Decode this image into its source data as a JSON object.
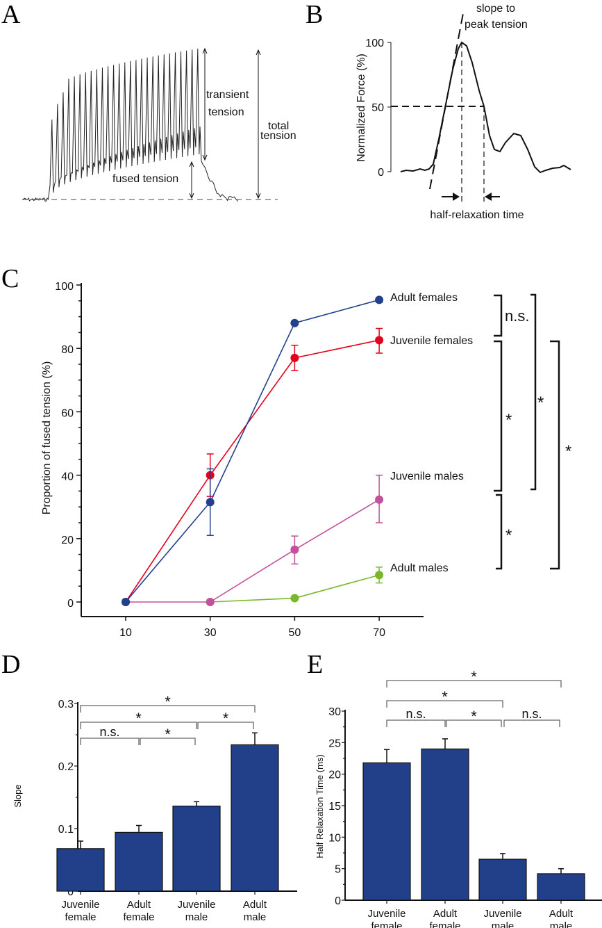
{
  "panel_letters": [
    "A",
    "B",
    "C",
    "D",
    "E"
  ],
  "panel_a": {
    "labels": {
      "transient": [
        "transient",
        "tension"
      ],
      "total": [
        "total",
        "tension"
      ],
      "fused": "fused tension"
    }
  },
  "panel_b": {
    "ylabel": "Normalized Force (%)",
    "yticks": [
      "0",
      "50",
      "100"
    ],
    "slope_label": [
      "slope to",
      "peak tension"
    ],
    "half_label": "half-relaxation time"
  },
  "chart_data": [
    {
      "type": "line",
      "panel": "C",
      "ylabel": "Proportion of fused tension (%)",
      "xlabel": "",
      "x": [
        10,
        30,
        50,
        70
      ],
      "xticks": [
        "10",
        "30",
        "50",
        "70"
      ],
      "yticks": [
        "0",
        "20",
        "40",
        "60",
        "80",
        "100"
      ],
      "ylim": [
        0,
        100
      ],
      "series": [
        {
          "name": "Adult females",
          "color": "#22408c",
          "values": [
            0,
            31.5,
            88,
            95.3
          ],
          "err_low": [
            0,
            21,
            88,
            94.5
          ],
          "err_high": [
            0,
            42,
            88,
            96
          ]
        },
        {
          "name": "Juvenile females",
          "color": "#e4001c",
          "values": [
            0,
            40,
            77,
            82.6
          ],
          "err_low": [
            0,
            33.3,
            73,
            78.5
          ],
          "err_high": [
            0,
            46.7,
            81,
            86.3
          ]
        },
        {
          "name": "Juvenile males",
          "color": "#c2509a",
          "values": [
            0,
            0,
            16.5,
            32.3
          ],
          "err_low": [
            0,
            0,
            12,
            25
          ],
          "err_high": [
            0,
            0,
            20.8,
            40
          ]
        },
        {
          "name": "Adult males",
          "color": "#7ab82a",
          "values": [
            0,
            0,
            1.2,
            8.5
          ],
          "err_low": [
            0,
            0,
            1.2,
            6
          ],
          "err_high": [
            0,
            0,
            1.2,
            11
          ]
        }
      ],
      "significance": [
        {
          "between": [
            "Adult females",
            "Juvenile females"
          ],
          "label": "n.s."
        },
        {
          "between": [
            "Juvenile females",
            "Juvenile males"
          ],
          "label": "*"
        },
        {
          "between": [
            "Juvenile males",
            "Adult males"
          ],
          "label": "*"
        },
        {
          "between": [
            "Adult females",
            "Juvenile males"
          ],
          "label": "*"
        },
        {
          "between": [
            "Juvenile females",
            "Adult males"
          ],
          "label": "*"
        }
      ]
    },
    {
      "type": "bar",
      "panel": "D",
      "ylabel": "Slope",
      "categories": [
        [
          "Juvenile",
          "female"
        ],
        [
          "Adult",
          "female"
        ],
        [
          "Juvenile",
          "male"
        ],
        [
          "Adult",
          "male"
        ]
      ],
      "values": [
        0.068,
        0.094,
        0.136,
        0.234
      ],
      "err_high": [
        0.08,
        0.105,
        0.143,
        0.253
      ],
      "yticks": [
        "0",
        "0.1",
        "0.2",
        "0.3"
      ],
      "ylim": [
        0,
        0.3
      ],
      "color": "#22408a",
      "significance": [
        {
          "between": [
            0,
            1
          ],
          "label": "n.s."
        },
        {
          "between": [
            1,
            2
          ],
          "label": "*"
        },
        {
          "between": [
            0,
            2
          ],
          "label": "*"
        },
        {
          "between": [
            2,
            3
          ],
          "label": "*"
        },
        {
          "between": [
            0,
            3
          ],
          "label": "*"
        }
      ]
    },
    {
      "type": "bar",
      "panel": "E",
      "ylabel": "Half Relaxation Time (ms)",
      "categories": [
        [
          "Juvenile",
          "female"
        ],
        [
          "Adult",
          "female"
        ],
        [
          "Juvenile",
          "male"
        ],
        [
          "Adult",
          "male"
        ]
      ],
      "values": [
        21.8,
        24.0,
        6.5,
        4.2
      ],
      "err_high": [
        23.9,
        25.6,
        7.4,
        5.0
      ],
      "yticks": [
        "0",
        "5",
        "10",
        "15",
        "20",
        "25",
        "30"
      ],
      "ylim": [
        0,
        30
      ],
      "color": "#22408a",
      "significance": [
        {
          "between": [
            0,
            1
          ],
          "label": "n.s."
        },
        {
          "between": [
            1,
            2
          ],
          "label": "*"
        },
        {
          "between": [
            2,
            3
          ],
          "label": "n.s."
        },
        {
          "between": [
            0,
            2
          ],
          "label": "*"
        },
        {
          "between": [
            0,
            3
          ],
          "label": "*"
        }
      ]
    }
  ]
}
